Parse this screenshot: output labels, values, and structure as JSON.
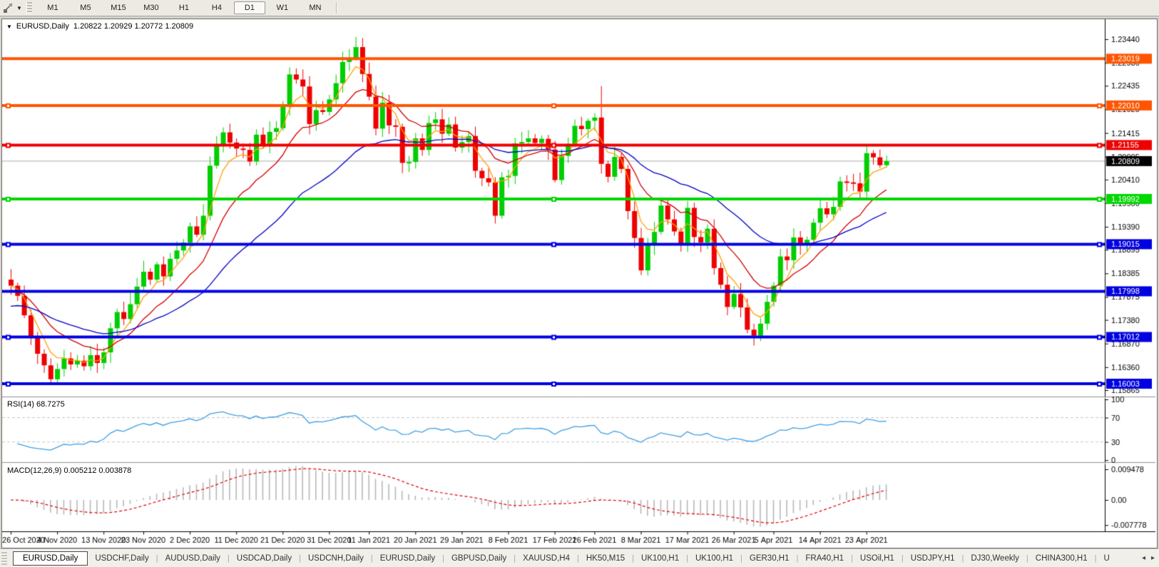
{
  "toolbar": {
    "cursor_tool_icon": "chart-cursor",
    "timeframes": [
      "M1",
      "M5",
      "M15",
      "M30",
      "H1",
      "H4",
      "D1",
      "W1",
      "MN"
    ],
    "active_timeframe": "D1"
  },
  "chart": {
    "title": {
      "symbol": "EURUSD,Daily",
      "ohlc": "1.20822 1.20929 1.20772 1.20809"
    }
  },
  "chart_data": {
    "type": "candlestick",
    "symbol": "EURUSD",
    "timeframe": "Daily",
    "x_labels": [
      "26 Oct 2020",
      "4 Nov 2020",
      "13 Nov 2020",
      "23 Nov 2020",
      "2 Dec 2020",
      "11 Dec 2020",
      "21 Dec 2020",
      "31 Dec 2020",
      "11 Jan 2021",
      "20 Jan 2021",
      "29 Jan 2021",
      "8 Feb 2021",
      "17 Feb 2021",
      "26 Feb 2021",
      "8 Mar 2021",
      "17 Mar 2021",
      "26 Mar 2021",
      "5 Apr 2021",
      "14 Apr 2021",
      "23 Apr 2021"
    ],
    "x_label_indices": [
      0,
      7,
      14,
      20,
      27,
      34,
      41,
      48,
      54,
      61,
      68,
      75,
      82,
      88,
      95,
      102,
      109,
      115,
      122,
      129
    ],
    "closes": [
      1.1812,
      1.179,
      1.1748,
      1.17,
      1.1665,
      1.164,
      1.161,
      1.1632,
      1.1655,
      1.1642,
      1.165,
      1.1638,
      1.1662,
      1.1645,
      1.1668,
      1.172,
      1.1755,
      1.174,
      1.1772,
      1.181,
      1.1842,
      1.1825,
      1.1858,
      1.1832,
      1.187,
      1.1888,
      1.1905,
      1.194,
      1.1922,
      1.1963,
      1.2071,
      1.2115,
      1.2143,
      1.2121,
      1.2108,
      1.2105,
      1.208,
      1.2138,
      1.2113,
      1.2144,
      1.2152,
      1.22,
      1.2268,
      1.2257,
      1.2242,
      1.2161,
      1.2191,
      1.2187,
      1.2214,
      1.2249,
      1.2295,
      1.2304,
      1.2327,
      1.2269,
      1.222,
      1.2151,
      1.2207,
      1.2158,
      1.2155,
      1.2077,
      1.2079,
      1.213,
      1.2105,
      1.2163,
      1.2171,
      1.214,
      1.216,
      1.211,
      1.2122,
      1.2135,
      1.206,
      1.2044,
      1.2035,
      1.1963,
      1.2046,
      1.2049,
      1.2119,
      1.2122,
      1.213,
      1.212,
      1.2129,
      1.2106,
      1.204,
      1.2092,
      1.2118,
      1.2157,
      1.215,
      1.2168,
      1.2175,
      1.2075,
      1.2047,
      1.209,
      1.2064,
      1.1973,
      1.1915,
      1.1845,
      1.19,
      1.1928,
      1.1985,
      1.1955,
      1.1929,
      1.1899,
      1.198,
      1.1917,
      1.1905,
      1.1935,
      1.185,
      1.1814,
      1.1766,
      1.1794,
      1.1765,
      1.1717,
      1.1704,
      1.173,
      1.1777,
      1.1812,
      1.1875,
      1.1867,
      1.1916,
      1.1899,
      1.1911,
      1.1948,
      1.1979,
      1.1966,
      1.1982,
      1.2037,
      1.2035,
      1.2033,
      1.2015,
      1.2098,
      1.2089,
      1.2072,
      1.20809
    ],
    "wick_overrides": {
      "6": {
        "low": 1.1603
      },
      "52": {
        "high": 1.2349
      },
      "89": {
        "high": 1.2243
      },
      "132": {
        "high": 1.20929
      }
    },
    "price_axis_ticks": [
      "1.23440",
      "1.22930",
      "1.22435",
      "1.21925",
      "1.21415",
      "1.20905",
      "1.20410",
      "1.19900",
      "1.19390",
      "1.18895",
      "1.18385",
      "1.17875",
      "1.17380",
      "1.16870",
      "1.16360",
      "1.15865"
    ],
    "hlines": [
      {
        "price": 1.23019,
        "label": "1.23019",
        "color": "#ff5500",
        "selected": false
      },
      {
        "price": 1.2201,
        "label": "1.22010",
        "color": "#ff5500",
        "selected": true
      },
      {
        "price": 1.21155,
        "label": "1.21155",
        "color": "#ee0000",
        "selected": true
      },
      {
        "price": 1.19992,
        "label": "1.19992",
        "color": "#00d800",
        "selected": true
      },
      {
        "price": 1.19015,
        "label": "1.19015",
        "color": "#0000e0",
        "selected": true
      },
      {
        "price": 1.17998,
        "label": "1.17998",
        "color": "#0000e0",
        "selected": false
      },
      {
        "price": 1.17012,
        "label": "1.17012",
        "color": "#0000e0",
        "selected": true
      },
      {
        "price": 1.16003,
        "label": "1.16003",
        "color": "#0000e0",
        "selected": true
      }
    ],
    "current_price": {
      "value": 1.20809,
      "label": "1.20809",
      "line_color": "#bdbdbd",
      "badge_color": "#000000"
    },
    "moving_averages": [
      {
        "name": "fast-ma",
        "period": 5,
        "color": "#ffa000",
        "seed": 1.1812
      },
      {
        "name": "mid-ma",
        "period": 13,
        "color": "#d40000",
        "seed": 1.18
      },
      {
        "name": "slow-ma",
        "period": 34,
        "color": "#0000c8",
        "seed": 1.1765
      }
    ],
    "candle_up_color": "#00ce00",
    "candle_down_color": "#ee0000",
    "rsi": {
      "label": "RSI(14) 68.7275",
      "period": 14,
      "value": 68.7275,
      "levels": [
        70,
        30
      ],
      "axis_ticks": [
        "100",
        "70",
        "30",
        "0"
      ],
      "color": "#3e9fe5"
    },
    "macd": {
      "label": "MACD(12,26,9) 0.005212 0.003878",
      "fast": 12,
      "slow": 26,
      "signal_period": 9,
      "macd_value": 0.005212,
      "signal_value": 0.003878,
      "axis_ticks": [
        "0.009478",
        "0.00",
        "-0.007778"
      ],
      "bar_color": "#b8b8b8",
      "signal_color": "#e00000"
    }
  },
  "tabs": {
    "active_index": 0,
    "items": [
      "EURUSD,Daily",
      "USDCHF,Daily",
      "AUDUSD,Daily",
      "USDCAD,Daily",
      "USDCNH,Daily",
      "EURUSD,Daily",
      "GBPUSD,Daily",
      "XAUUSD,H4",
      "HK50,M15",
      "UK100,H1",
      "UK100,H1",
      "GER30,H1",
      "FRA40,H1",
      "USOil,H1",
      "USDJPY,H1",
      "DJ30,Weekly",
      "CHINA300,H1",
      "U"
    ],
    "scroll_left_icon": "◂",
    "scroll_right_icon": "▸"
  }
}
